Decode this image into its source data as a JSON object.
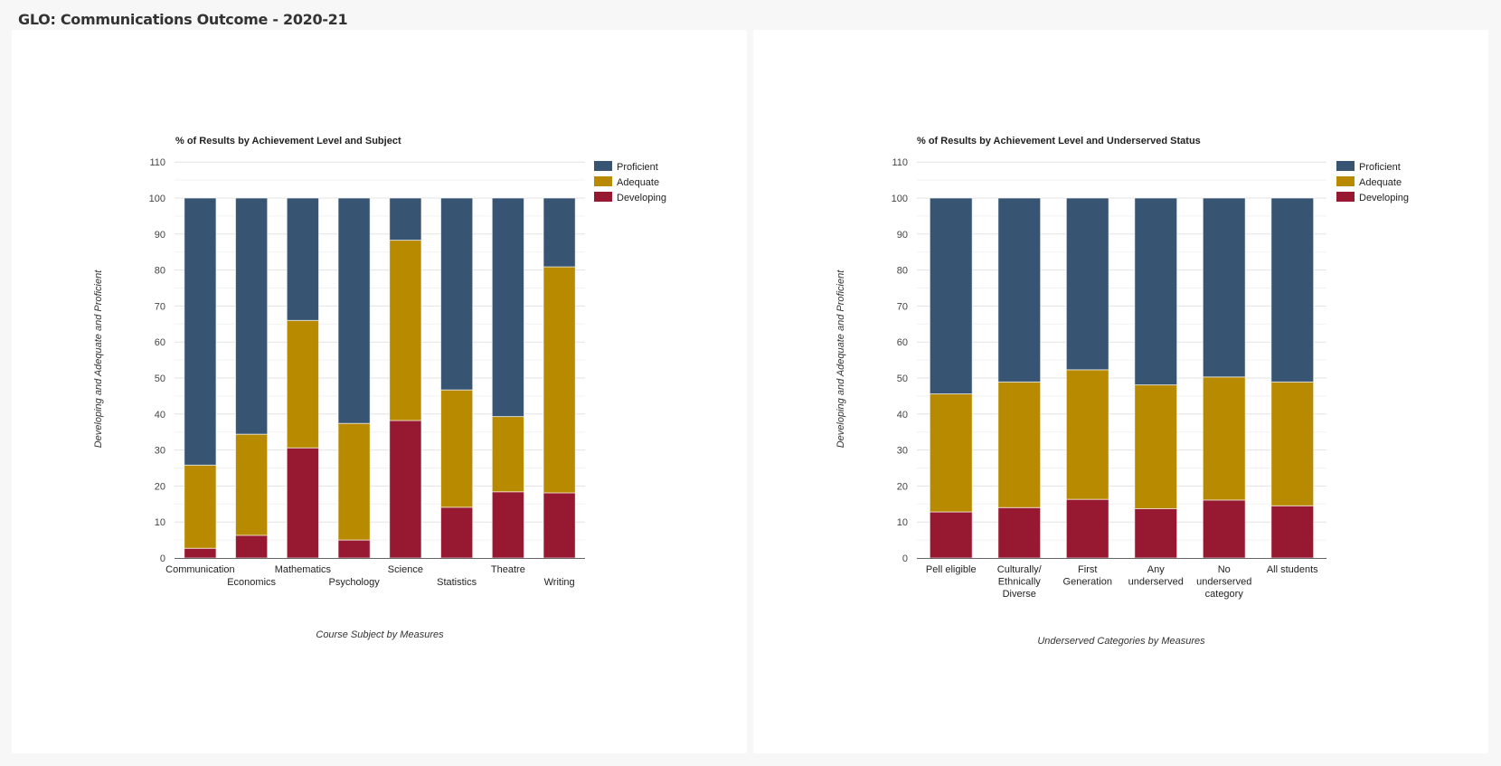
{
  "page": {
    "title": "GLO: Communications Outcome - 2020-21"
  },
  "colors": {
    "proficient": "#375573",
    "adequate": "#b88a00",
    "developing": "#961831",
    "grid": "#e6e6e6",
    "axis": "#666666"
  },
  "chart_data": [
    {
      "type": "bar",
      "stacked": true,
      "title": "% of Results by Achievement Level and Subject",
      "xlabel": "Course Subject by Measures",
      "ylabel": "Developing and Adequate and Proficient",
      "ylim": [
        0,
        110
      ],
      "yticks": [
        0,
        10,
        20,
        30,
        40,
        50,
        60,
        70,
        80,
        90,
        100,
        110
      ],
      "grid": true,
      "legend_position": "top-right",
      "categories": [
        "Communication",
        "Economics",
        "Mathematics",
        "Psychology",
        "Science",
        "Statistics",
        "Theatre",
        "Writing"
      ],
      "category_label_rows": [
        0,
        1,
        0,
        1,
        0,
        1,
        0,
        1
      ],
      "series": [
        {
          "name": "Developing",
          "color_key": "developing",
          "values": [
            2.7,
            6.3,
            30.6,
            5.0,
            38.2,
            14.1,
            18.4,
            18.1
          ]
        },
        {
          "name": "Adequate",
          "color_key": "adequate",
          "values": [
            23.1,
            28.1,
            35.4,
            32.4,
            50.1,
            32.6,
            20.9,
            62.8
          ]
        },
        {
          "name": "Proficient",
          "color_key": "proficient",
          "values": [
            74.2,
            65.6,
            34.0,
            62.6,
            11.7,
            53.3,
            60.7,
            19.1
          ]
        }
      ],
      "legend": [
        "Proficient",
        "Adequate",
        "Developing"
      ]
    },
    {
      "type": "bar",
      "stacked": true,
      "title": "% of Results by Achievement Level and Underserved Status",
      "xlabel": "Underserved Categories by Measures",
      "ylabel": "Developing and Adequate and Proficient",
      "ylim": [
        0,
        110
      ],
      "yticks": [
        0,
        10,
        20,
        30,
        40,
        50,
        60,
        70,
        80,
        90,
        100,
        110
      ],
      "grid": true,
      "legend_position": "top-right",
      "categories": [
        "Pell eligible",
        "Culturally/ Ethnically Diverse",
        "First Generation",
        "Any underserved",
        "No underserved category",
        "All students"
      ],
      "category_label_lines": [
        [
          "Pell eligible"
        ],
        [
          "Culturally/",
          "Ethnically",
          "Diverse"
        ],
        [
          "First",
          "Generation"
        ],
        [
          "Any",
          "underserved"
        ],
        [
          "No",
          "underserved",
          "category"
        ],
        [
          "All students"
        ]
      ],
      "series": [
        {
          "name": "Developing",
          "color_key": "developing",
          "values": [
            12.8,
            14.0,
            16.3,
            13.7,
            16.1,
            14.5
          ]
        },
        {
          "name": "Adequate",
          "color_key": "adequate",
          "values": [
            32.8,
            34.9,
            36.0,
            34.4,
            34.2,
            34.4
          ]
        },
        {
          "name": "Proficient",
          "color_key": "proficient",
          "values": [
            54.4,
            51.1,
            47.7,
            51.9,
            49.7,
            51.1
          ]
        }
      ],
      "legend": [
        "Proficient",
        "Adequate",
        "Developing"
      ]
    }
  ]
}
